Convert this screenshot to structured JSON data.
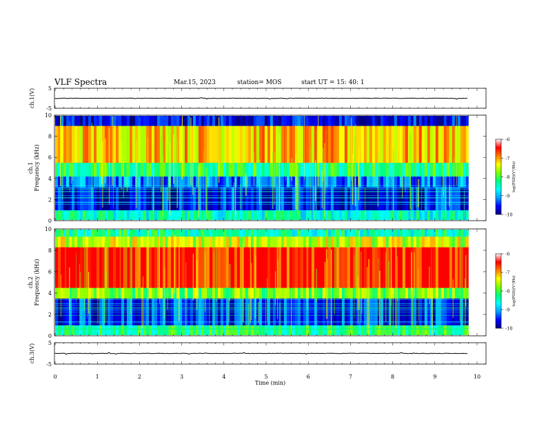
{
  "header": {
    "title": "VLF Spectra",
    "date": "Mar.15, 2023",
    "station": "station= MOS",
    "start": "start  UT =   15: 40: 1"
  },
  "colors": {
    "colormap": [
      "#000080",
      "#0000ff",
      "#00a0ff",
      "#00ffff",
      "#00ff80",
      "#80ff00",
      "#ffff00",
      "#ff8000",
      "#ff0000",
      "#ffffff"
    ],
    "trace": "#000000"
  },
  "chart_data": [
    {
      "type": "line",
      "ylabel": "ch.1(V)",
      "ylim": [
        -5,
        5
      ],
      "yticks": [
        "5",
        "-5"
      ],
      "xlim": [
        0,
        10
      ],
      "series": [
        {
          "values_description_free": true,
          "level": 0
        }
      ]
    },
    {
      "type": "heatmap",
      "ylabel": "ch.1\nFrequency (kHz)",
      "ylim": [
        0,
        10
      ],
      "yticks": [
        "0",
        "2",
        "4",
        "6",
        "8",
        "10"
      ],
      "xlim": [
        0,
        10
      ],
      "colorbar": {
        "label": "log(PSD)(V²/Hz)",
        "ticks": [
          "-6",
          "-7",
          "-8",
          "-9",
          "-10"
        ],
        "range": [
          -10,
          -6
        ]
      },
      "bands": [
        {
          "from_khz": 0.0,
          "to_khz": 1.0,
          "level": -8.3
        },
        {
          "from_khz": 1.0,
          "to_khz": 3.2,
          "level": -9.5
        },
        {
          "from_khz": 3.2,
          "to_khz": 4.2,
          "level": -9.1
        },
        {
          "from_khz": 4.2,
          "to_khz": 5.5,
          "level": -8.0
        },
        {
          "from_khz": 5.5,
          "to_khz": 9.0,
          "level": -6.8
        },
        {
          "from_khz": 9.0,
          "to_khz": 10.0,
          "level": -9.6
        }
      ],
      "data_end_min": 9.8
    },
    {
      "type": "heatmap",
      "ylabel": "ch.2\nFrequency (kHz)",
      "ylim": [
        0,
        10
      ],
      "yticks": [
        "0",
        "2",
        "4",
        "6",
        "8",
        "10"
      ],
      "xlim": [
        0,
        10
      ],
      "colorbar": {
        "label": "log(PSD)(V²/Hz)",
        "ticks": [
          "-6",
          "-7",
          "-8",
          "-9",
          "-10"
        ],
        "range": [
          -10,
          -6
        ]
      },
      "bands": [
        {
          "from_khz": 0.0,
          "to_khz": 1.0,
          "level": -8.0
        },
        {
          "from_khz": 1.0,
          "to_khz": 3.5,
          "level": -9.4
        },
        {
          "from_khz": 3.5,
          "to_khz": 4.5,
          "level": -7.6
        },
        {
          "from_khz": 4.5,
          "to_khz": 8.3,
          "level": -6.1
        },
        {
          "from_khz": 8.3,
          "to_khz": 9.3,
          "level": -7.2
        },
        {
          "from_khz": 9.3,
          "to_khz": 10.0,
          "level": -8.2
        }
      ],
      "data_end_min": 9.8
    },
    {
      "type": "line",
      "ylabel": "ch.3(V)",
      "ylim": [
        -5,
        5
      ],
      "yticks": [
        "5",
        "-5"
      ],
      "xlim": [
        0,
        10
      ],
      "xlabel": "Time  (min)",
      "xticks": [
        "0",
        "1",
        "2",
        "3",
        "4",
        "5",
        "6",
        "7",
        "8",
        "9",
        "10"
      ],
      "series": [
        {
          "level": 0
        }
      ]
    }
  ]
}
